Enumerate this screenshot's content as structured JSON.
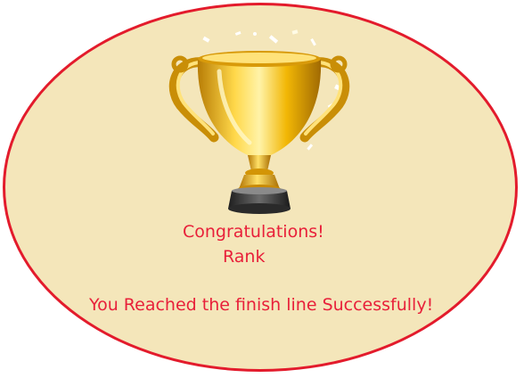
{
  "colors": {
    "background": "#f4e6ba",
    "border": "#e31b2c",
    "text": "#e8203a",
    "gold": "#f2b705"
  },
  "trophy": {
    "icon": "trophy-icon",
    "decoration": "confetti-icon"
  },
  "messages": {
    "congratulations": "Congratulations!",
    "rank": "Rank",
    "finish": "You Reached the finish line Successfully!"
  }
}
